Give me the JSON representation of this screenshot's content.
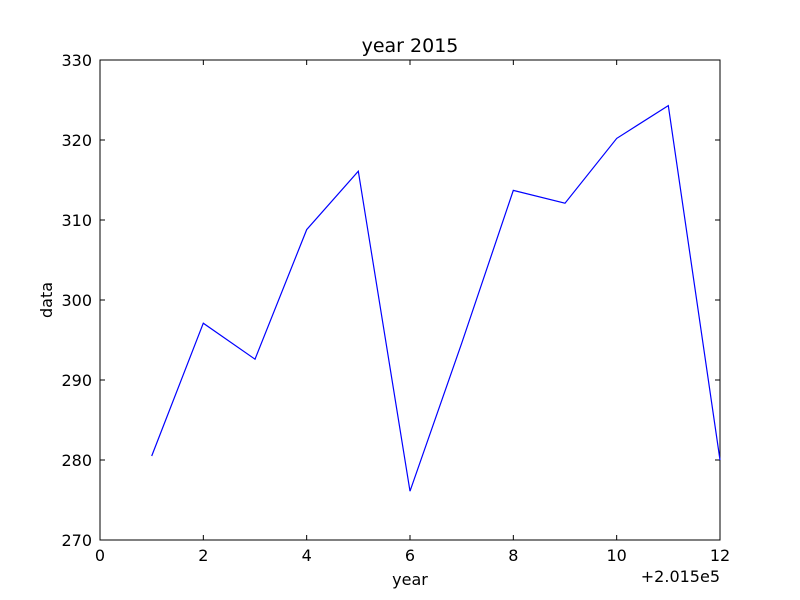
{
  "chart_data": {
    "type": "line",
    "title": "year 2015",
    "xlabel": "year",
    "ylabel": "data",
    "x_offset_label": "+2.015e5",
    "xlim": [
      0,
      12
    ],
    "ylim": [
      270,
      330
    ],
    "xticks": [
      0,
      2,
      4,
      6,
      8,
      10,
      12
    ],
    "yticks": [
      270,
      280,
      290,
      300,
      310,
      320,
      330
    ],
    "grid": false,
    "series": [
      {
        "color": "#0000ff",
        "x": [
          1,
          2,
          3,
          4,
          5,
          6,
          7,
          8,
          9,
          10,
          11,
          12
        ],
        "y": [
          280.5,
          297.1,
          292.6,
          308.8,
          316.1,
          276.1,
          294.6,
          313.7,
          312.1,
          320.2,
          324.3,
          280.0
        ]
      }
    ]
  }
}
